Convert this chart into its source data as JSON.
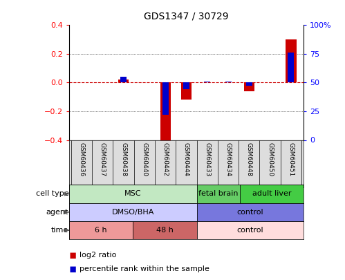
{
  "title": "GDS1347 / 30729",
  "samples": [
    "GSM60436",
    "GSM60437",
    "GSM60438",
    "GSM60440",
    "GSM60442",
    "GSM60444",
    "GSM60433",
    "GSM60434",
    "GSM60448",
    "GSM60450",
    "GSM60451"
  ],
  "log2_ratio": [
    0.0,
    0.0,
    0.02,
    0.0,
    -0.41,
    -0.12,
    0.0,
    0.0,
    -0.06,
    0.0,
    0.3
  ],
  "percentile_rank": [
    50,
    50,
    55,
    50,
    22,
    44,
    51,
    51,
    47,
    50,
    76
  ],
  "ylim_left": [
    -0.4,
    0.4
  ],
  "ylim_right": [
    0,
    100
  ],
  "yticks_left": [
    -0.4,
    -0.2,
    0.0,
    0.2,
    0.4
  ],
  "yticks_right": [
    0,
    25,
    50,
    75,
    100
  ],
  "yticklabels_right": [
    "0",
    "25",
    "50",
    "75",
    "100%"
  ],
  "cell_type_groups": [
    {
      "label": "MSC",
      "start": 0,
      "end": 5,
      "color": "#c2e8c2"
    },
    {
      "label": "fetal brain",
      "start": 6,
      "end": 7,
      "color": "#66cc66"
    },
    {
      "label": "adult liver",
      "start": 8,
      "end": 10,
      "color": "#44cc44"
    }
  ],
  "agent_groups": [
    {
      "label": "DMSO/BHA",
      "start": 0,
      "end": 5,
      "color": "#ccccff"
    },
    {
      "label": "control",
      "start": 6,
      "end": 10,
      "color": "#7777dd"
    }
  ],
  "time_groups": [
    {
      "label": "6 h",
      "start": 0,
      "end": 2,
      "color": "#ee9999"
    },
    {
      "label": "48 h",
      "start": 3,
      "end": 5,
      "color": "#cc6666"
    },
    {
      "label": "control",
      "start": 6,
      "end": 10,
      "color": "#ffdddd"
    }
  ],
  "row_labels": [
    "cell type",
    "agent",
    "time"
  ],
  "bar_color_red": "#cc0000",
  "bar_color_blue": "#0000cc",
  "zero_line_color": "#cc0000",
  "bg_color": "#ffffff",
  "bar_width": 0.5,
  "blue_bar_width": 0.3
}
